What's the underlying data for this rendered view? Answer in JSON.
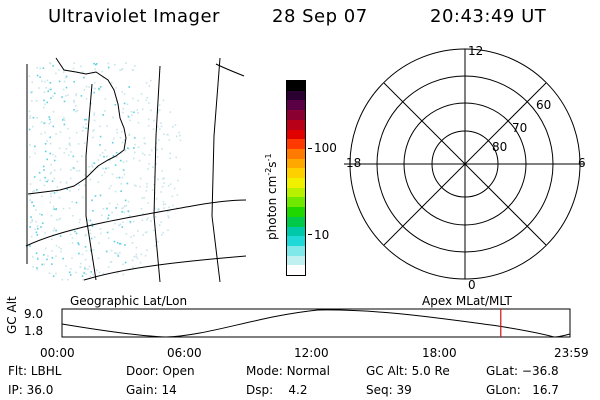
{
  "header": {
    "instrument": "Ultraviolet Imager",
    "date": "28 Sep 07",
    "time": "20:43:49 UT"
  },
  "geo_panel": {
    "label": "Geographic Lat/Lon"
  },
  "polar_panel": {
    "label": "Apex MLat/MLT",
    "mlt_labels": [
      "12",
      "18",
      "6",
      "0"
    ],
    "mlat_labels": [
      "60",
      "70",
      "80"
    ]
  },
  "colorbar": {
    "unit_label": "photon cm",
    "unit_sup1": "-2",
    "unit_mid": "s",
    "unit_sup2": "-1",
    "ticks": [
      "100",
      "10"
    ],
    "colors": [
      "#000000",
      "#2a0030",
      "#5a0044",
      "#8a0030",
      "#b80018",
      "#e00000",
      "#ff3a00",
      "#ff7a00",
      "#ffa800",
      "#ffd000",
      "#f0f000",
      "#b8f000",
      "#70e800",
      "#20d800",
      "#00c848",
      "#00c8a8",
      "#20d8d8",
      "#80e8e8",
      "#c0f0f0",
      "#ffffff"
    ]
  },
  "timeline": {
    "ylabel_line1": "GC",
    "ylabel_line2": "Alt",
    "y_top": "9.0",
    "y_bottom": "1.8",
    "x_ticks": [
      "00:00",
      "06:00",
      "12:00",
      "18:00",
      "23:59"
    ],
    "current_time_hours": 20.73
  },
  "info": {
    "flt_label": "Flt:",
    "flt_value": "LBHL",
    "door_label": "Door:",
    "door_value": "Open",
    "mode_label": "Mode:",
    "mode_value": "Normal",
    "gcalt_label": "GC Alt:",
    "gcalt_value": "5.0 Re",
    "glat_label": "GLat:",
    "glat_value": "−36.8",
    "ip_label": "IP:",
    "ip_value": "36.0",
    "gain_label": "Gain:",
    "gain_value": "14",
    "dsp_label": "Dsp:",
    "dsp_value": "4.2",
    "seq_label": "Seq:",
    "seq_value": "39",
    "glon_label": "GLon:",
    "glon_value": "16.7"
  },
  "colors": {
    "time_marker": "#d01010",
    "aurora_dots": "#5fd0e0"
  }
}
